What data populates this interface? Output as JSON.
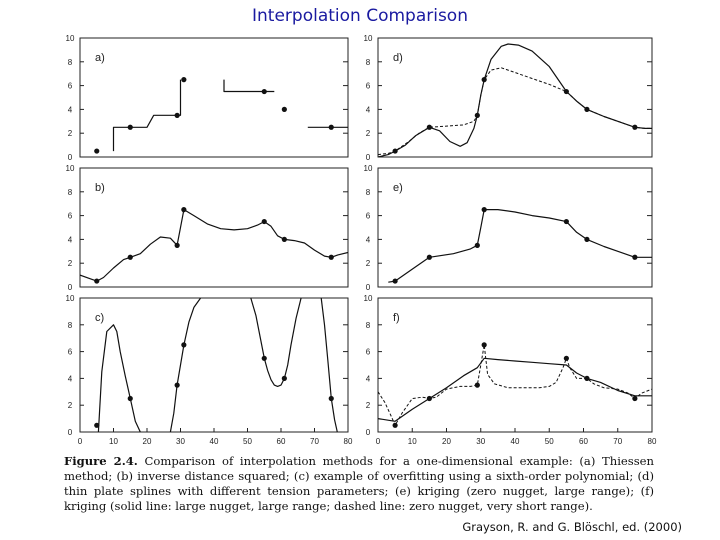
{
  "page": {
    "title": "Interpolation Comparison",
    "caption_label": "Figure 2.4.",
    "caption_text": "Comparison of interpolation methods for a one-dimensional example: (a) Thiessen method; (b) inverse distance squared; (c) example of overfitting using a sixth-order polynomial; (d) thin plate splines with different tension parameters; (e) kriging (zero nugget, large range); (f) kriging (solid line: large nugget, large range; dashed line: zero nugget, very short range).",
    "source": "Grayson, R. and G. Blöschl, ed. (2000)"
  },
  "chart_data": [
    {
      "panel": "a)",
      "type": "step",
      "xlim": [
        0,
        80
      ],
      "ylim": [
        0,
        10
      ],
      "yticks": [
        0,
        2,
        4,
        6,
        8,
        10
      ],
      "points": {
        "x": [
          5,
          15,
          29,
          31,
          55,
          61,
          75
        ],
        "y": [
          0.5,
          2.5,
          3.5,
          6.5,
          5.5,
          4.0,
          2.5
        ]
      },
      "series": [
        {
          "line": "solid",
          "x": [
            10,
            10,
            20,
            20,
            22,
            22,
            30,
            30,
            30
          ],
          "y": [
            0.5,
            2.5,
            2.5,
            2.5,
            3.5,
            3.5,
            3.5,
            6.5,
            6.5
          ]
        },
        {
          "line": "solid",
          "x": [
            43,
            43,
            58
          ],
          "y": [
            6.5,
            5.5,
            5.5
          ]
        },
        {
          "line": "solid",
          "x": [
            68,
            80
          ],
          "y": [
            2.5,
            2.5
          ]
        }
      ]
    },
    {
      "panel": "b)",
      "type": "line",
      "xlim": [
        0,
        80
      ],
      "ylim": [
        0,
        10
      ],
      "yticks": [
        0,
        2,
        4,
        6,
        8,
        10
      ],
      "points": {
        "x": [
          5,
          15,
          29,
          31,
          55,
          61,
          75
        ],
        "y": [
          0.5,
          2.5,
          3.5,
          6.5,
          5.5,
          4.0,
          2.5
        ]
      },
      "series": [
        {
          "line": "solid",
          "x": [
            0,
            3,
            5,
            7,
            10,
            13,
            15,
            18,
            21,
            24,
            27,
            29,
            30,
            31,
            34,
            38,
            42,
            46,
            50,
            53,
            55,
            57,
            59,
            61,
            64,
            67,
            70,
            73,
            75,
            77,
            80
          ],
          "y": [
            1.0,
            0.7,
            0.5,
            0.8,
            1.6,
            2.3,
            2.5,
            2.8,
            3.6,
            4.2,
            4.1,
            3.5,
            5.0,
            6.5,
            6.0,
            5.3,
            4.9,
            4.8,
            4.9,
            5.2,
            5.5,
            5.1,
            4.3,
            4.0,
            3.9,
            3.7,
            3.1,
            2.6,
            2.5,
            2.7,
            2.9
          ]
        }
      ]
    },
    {
      "panel": "c)",
      "type": "line",
      "xlim": [
        0,
        80
      ],
      "ylim": [
        0,
        10
      ],
      "yticks": [
        0,
        2,
        4,
        6,
        8,
        10
      ],
      "xticks": [
        0,
        10,
        20,
        30,
        40,
        50,
        60,
        70,
        80
      ],
      "points": {
        "x": [
          5,
          15,
          29,
          31,
          55,
          61,
          75
        ],
        "y": [
          0.5,
          2.5,
          3.5,
          6.5,
          5.5,
          4.0,
          2.5
        ]
      },
      "series": [
        {
          "line": "solid",
          "x": [
            5.5,
            6.5,
            8,
            10,
            11,
            12,
            13.5,
            15,
            16.5,
            18
          ],
          "y": [
            0.0,
            4.5,
            7.5,
            8.0,
            7.5,
            6.0,
            4.2,
            2.5,
            0.8,
            0.0
          ]
        },
        {
          "line": "solid",
          "x": [
            27,
            28,
            29,
            30,
            31,
            32.5,
            34,
            36
          ],
          "y": [
            0.0,
            1.4,
            3.5,
            5.0,
            6.5,
            8.2,
            9.3,
            10.0
          ]
        },
        {
          "line": "solid",
          "x": [
            51,
            52.5,
            54,
            55,
            56,
            57,
            58,
            59,
            60,
            61,
            62,
            63,
            64.5,
            66
          ],
          "y": [
            10.0,
            8.7,
            6.8,
            5.5,
            4.6,
            3.9,
            3.5,
            3.4,
            3.5,
            4.0,
            5.0,
            6.5,
            8.5,
            10.0
          ]
        },
        {
          "line": "solid",
          "x": [
            72,
            73,
            74,
            75,
            76,
            76.8
          ],
          "y": [
            10.0,
            8.0,
            5.3,
            2.5,
            0.9,
            0.0
          ]
        }
      ]
    },
    {
      "panel": "d)",
      "type": "line",
      "xlim": [
        0,
        80
      ],
      "ylim": [
        0,
        10
      ],
      "yticks": [
        0,
        2,
        4,
        6,
        8,
        10
      ],
      "points": {
        "x": [
          5,
          15,
          29,
          31,
          55,
          61,
          75
        ],
        "y": [
          0.5,
          2.5,
          3.5,
          6.5,
          5.5,
          4.0,
          2.5
        ]
      },
      "series": [
        {
          "line": "solid",
          "x": [
            0,
            3,
            5,
            8,
            11,
            15,
            18,
            21,
            24,
            26,
            28,
            29,
            30,
            31,
            33,
            36,
            38,
            41,
            45,
            50,
            55,
            58,
            61,
            66,
            70,
            75,
            78,
            80
          ],
          "y": [
            0.0,
            0.2,
            0.5,
            1.0,
            1.8,
            2.5,
            2.2,
            1.3,
            0.9,
            1.2,
            2.4,
            3.5,
            5.2,
            6.5,
            8.2,
            9.3,
            9.5,
            9.4,
            8.9,
            7.6,
            5.5,
            4.7,
            4.0,
            3.4,
            3.0,
            2.5,
            2.4,
            2.4
          ]
        },
        {
          "line": "dashed",
          "x": [
            0,
            3,
            5,
            9,
            12,
            15,
            20,
            25,
            28,
            29,
            30,
            31,
            33,
            36,
            40,
            45,
            50,
            55,
            58,
            61,
            66,
            70,
            75,
            78,
            80
          ],
          "y": [
            0.2,
            0.3,
            0.5,
            1.3,
            2.0,
            2.5,
            2.6,
            2.7,
            3.0,
            3.5,
            5.2,
            6.5,
            7.3,
            7.5,
            7.1,
            6.6,
            6.1,
            5.5,
            4.7,
            4.0,
            3.4,
            3.0,
            2.5,
            2.4,
            2.4
          ]
        }
      ]
    },
    {
      "panel": "e)",
      "type": "line",
      "xlim": [
        0,
        80
      ],
      "ylim": [
        0,
        10
      ],
      "yticks": [
        0,
        2,
        4,
        6,
        8,
        10
      ],
      "points": {
        "x": [
          5,
          15,
          29,
          31,
          55,
          61,
          75
        ],
        "y": [
          0.5,
          2.5,
          3.5,
          6.5,
          5.5,
          4.0,
          2.5
        ]
      },
      "series": [
        {
          "line": "solid",
          "x": [
            3,
            5,
            10,
            15,
            22,
            27,
            29,
            30,
            31,
            35,
            40,
            45,
            50,
            55,
            58,
            61,
            66,
            70,
            75,
            80
          ],
          "y": [
            0.4,
            0.5,
            1.5,
            2.5,
            2.8,
            3.2,
            3.5,
            5.0,
            6.5,
            6.5,
            6.3,
            6.0,
            5.8,
            5.5,
            4.6,
            4.0,
            3.4,
            3.0,
            2.5,
            2.5
          ]
        }
      ]
    },
    {
      "panel": "f)",
      "type": "line",
      "xlim": [
        0,
        80
      ],
      "ylim": [
        0,
        10
      ],
      "yticks": [
        0,
        2,
        4,
        6,
        8,
        10
      ],
      "xticks": [
        0,
        10,
        20,
        30,
        40,
        50,
        60,
        70,
        80
      ],
      "points": {
        "x": [
          5,
          15,
          29,
          31,
          55,
          61,
          75
        ],
        "y": [
          0.5,
          2.5,
          3.5,
          6.5,
          5.5,
          4.0,
          2.5
        ]
      },
      "series": [
        {
          "line": "solid",
          "x": [
            0,
            5,
            10,
            15,
            20,
            25,
            29,
            31,
            35,
            40,
            45,
            50,
            55,
            58,
            61,
            65,
            70,
            75,
            80
          ],
          "y": [
            1.0,
            0.8,
            1.7,
            2.5,
            3.3,
            4.2,
            4.8,
            5.5,
            5.4,
            5.3,
            5.2,
            5.1,
            5.0,
            4.4,
            4.0,
            3.7,
            3.1,
            2.7,
            2.7
          ]
        },
        {
          "line": "dashed",
          "x": [
            0,
            2,
            4,
            5,
            7,
            10,
            13,
            15,
            17,
            20,
            24,
            27,
            29,
            30,
            31,
            32,
            34,
            38,
            43,
            47,
            50,
            52,
            54,
            55,
            56,
            58,
            61,
            63,
            66,
            70,
            73,
            75,
            77,
            80
          ],
          "y": [
            3.0,
            2.2,
            1.1,
            0.5,
            1.4,
            2.5,
            2.6,
            2.5,
            2.6,
            3.2,
            3.4,
            3.4,
            3.5,
            5.0,
            6.5,
            4.3,
            3.6,
            3.3,
            3.3,
            3.3,
            3.4,
            3.7,
            4.8,
            5.5,
            4.8,
            4.0,
            4.0,
            3.6,
            3.3,
            3.2,
            2.9,
            2.5,
            2.9,
            3.2
          ]
        }
      ]
    }
  ]
}
